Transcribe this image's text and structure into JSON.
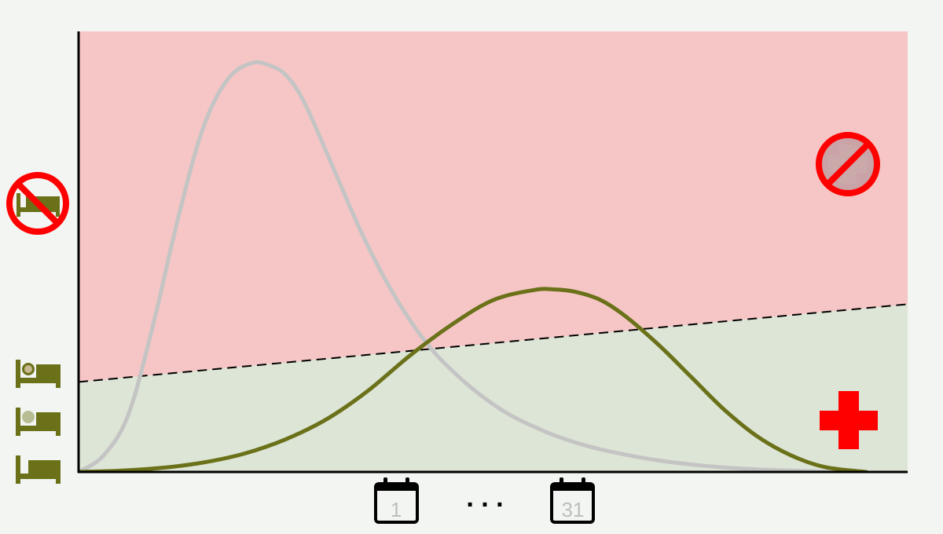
{
  "chart_data": {
    "type": "area",
    "title": "",
    "xlabel": "",
    "ylabel": "",
    "grid": false,
    "legend": "none",
    "xlim": [
      0,
      1
    ],
    "ylim": [
      0,
      1
    ],
    "x_tick_labels": [
      {
        "id": "day-start",
        "label": "1",
        "x": 0.385
      },
      {
        "id": "day-end",
        "label": "31",
        "x": 0.597
      }
    ],
    "ellipsis": ". . .",
    "capacity_line": {
      "name": "",
      "x": [
        0,
        1
      ],
      "y": [
        0.22,
        0.41
      ],
      "style": "dashed"
    },
    "regions": [
      {
        "id": "over-capacity",
        "color": "#f5c6c5"
      },
      {
        "id": "within-capacity",
        "color": "#dce5d6"
      }
    ],
    "series": [
      {
        "name": "",
        "color": "#c4c4c4",
        "x": [
          0,
          0.03,
          0.06,
          0.09,
          0.12,
          0.15,
          0.18,
          0.21,
          0.235,
          0.25,
          0.265,
          0.28,
          0.31,
          0.34,
          0.37,
          0.4,
          0.43,
          0.46,
          0.49,
          0.52,
          0.55,
          0.58,
          0.62,
          0.66,
          0.7,
          0.75,
          0.8,
          0.85,
          0.9,
          0.95
        ],
        "y": [
          0,
          0.04,
          0.14,
          0.36,
          0.62,
          0.84,
          0.96,
          1.0,
          0.99,
          0.97,
          0.93,
          0.87,
          0.73,
          0.59,
          0.47,
          0.37,
          0.29,
          0.23,
          0.18,
          0.14,
          0.11,
          0.085,
          0.06,
          0.042,
          0.028,
          0.016,
          0.008,
          0.004,
          0.001,
          0
        ]
      },
      {
        "name": "",
        "color": "#6b7119",
        "x": [
          0,
          0.05,
          0.1,
          0.15,
          0.2,
          0.25,
          0.3,
          0.35,
          0.4,
          0.45,
          0.5,
          0.55,
          0.575,
          0.6,
          0.63,
          0.66,
          0.7,
          0.74,
          0.78,
          0.82,
          0.86,
          0.9,
          0.95
        ],
        "y": [
          0,
          0.003,
          0.01,
          0.023,
          0.045,
          0.08,
          0.13,
          0.2,
          0.285,
          0.36,
          0.42,
          0.445,
          0.446,
          0.44,
          0.42,
          0.38,
          0.31,
          0.23,
          0.15,
          0.085,
          0.04,
          0.012,
          0
        ]
      }
    ]
  },
  "icons": {
    "hospital_cross": {
      "name": "hospital-cross-icon",
      "color": "#ff0000"
    },
    "no_hospital": {
      "name": "no-hospital-icon",
      "color": "#ff0000"
    },
    "no_bed": {
      "name": "no-bed-icon",
      "color": "#ff0000"
    },
    "bed_occupied": {
      "name": "bed-occupied-icon",
      "color": "#6b7119"
    },
    "bed_partial": {
      "name": "bed-partial-icon",
      "color": "#6b7119"
    },
    "bed_empty": {
      "name": "bed-empty-icon",
      "color": "#6b7119"
    },
    "calendar": {
      "name": "calendar-icon",
      "color": "#000000"
    }
  }
}
